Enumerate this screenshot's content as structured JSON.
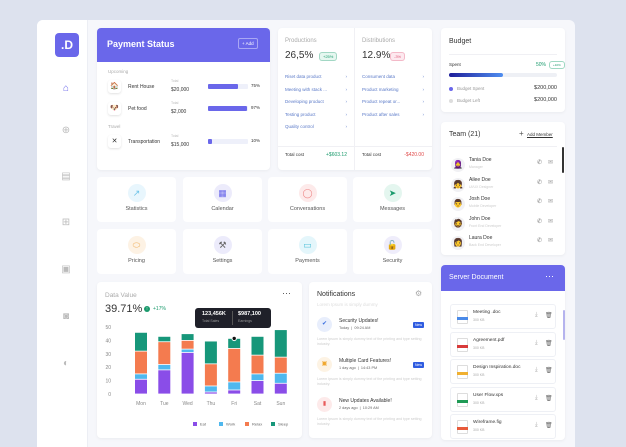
{
  "logo": ".D",
  "sidebar": {
    "icons": [
      "home-icon",
      "plus-circle-icon",
      "id-card-icon",
      "grid-icon",
      "inbox-icon",
      "user-icon",
      "half-moon-icon"
    ]
  },
  "payment": {
    "title": "Payment Status",
    "add_label": "+ Add",
    "groups": [
      {
        "label": "Upcoming",
        "items": [
          {
            "name": "Rent House",
            "icon": "house-icon",
            "total_label": "Total",
            "total": "$20,000",
            "percent": 75,
            "percent_label": "75%"
          },
          {
            "name": "Pet food",
            "icon": "dog-icon",
            "total_label": "Total",
            "total": "$2,000",
            "percent": 97,
            "percent_label": "97%"
          }
        ]
      },
      {
        "label": "Travel",
        "items": [
          {
            "name": "Transportation",
            "icon": "transport-icon",
            "total_label": "Total",
            "total": "$15,000",
            "percent": 10,
            "percent_label": "10%"
          }
        ]
      }
    ]
  },
  "productions": {
    "title": "Productions",
    "value": "26,5%",
    "badge": "+25%",
    "items": [
      "Riset data product",
      "Meeting with stack ...",
      "Developing product",
      "Testing product",
      "Quality control"
    ],
    "total_label": "Total cost",
    "total": "+$603.12"
  },
  "distributions": {
    "title": "Distributions",
    "value": "12.9%",
    "badge": "-3%",
    "items": [
      "Consument data",
      "Product marketing",
      "Product repeat or...",
      "Product after sales"
    ],
    "total_label": "Total cost",
    "total": "-$420.00"
  },
  "tiles": [
    {
      "label": "Statistics",
      "icon": "trend-icon",
      "bg": "#e8f6fd",
      "fg": "#6cc3e8"
    },
    {
      "label": "Calendar",
      "icon": "calendar-icon",
      "bg": "#ecebfb",
      "fg": "#6a67ea"
    },
    {
      "label": "Conversations",
      "icon": "chat-icon",
      "bg": "#fdeaea",
      "fg": "#e88"
    },
    {
      "label": "Messages",
      "icon": "send-icon",
      "bg": "#e4f6ef",
      "fg": "#1a9a6c"
    },
    {
      "label": "Pricing",
      "icon": "tag-icon",
      "bg": "#fdf2e4",
      "fg": "#f0b466"
    },
    {
      "label": "Settings",
      "icon": "hammer-icon",
      "bg": "#ecebfb",
      "fg": "#666"
    },
    {
      "label": "Payments",
      "icon": "money-icon",
      "bg": "#e4f6fb",
      "fg": "#4fc0d8"
    },
    {
      "label": "Security",
      "icon": "lock-icon",
      "bg": "#efedfb",
      "fg": "#8a86d8"
    }
  ],
  "data_value": {
    "title": "Data Value",
    "value": "39.71%",
    "change": "+17%",
    "tooltip": {
      "sales": "123,456K",
      "sales_label": "Total Sales",
      "earnings": "$987,100",
      "earnings_label": "Earnings"
    }
  },
  "chart_data": {
    "type": "bar",
    "stacked": true,
    "categories": [
      "Mon",
      "Tue",
      "Wed",
      "Thu",
      "Fri",
      "Sat",
      "Sun"
    ],
    "ylim": [
      0,
      50
    ],
    "yticks": [
      0,
      10,
      20,
      30,
      40,
      50
    ],
    "legend_position": "bottom-right",
    "series": [
      {
        "name": "Eat",
        "color": "#8a4de8",
        "values": [
          11,
          18,
          31,
          1.5,
          3,
          10,
          8
        ]
      },
      {
        "name": "Work",
        "color": "#4fb8ee",
        "values": [
          4,
          4,
          2.5,
          4.5,
          6,
          5,
          7.5
        ]
      },
      {
        "name": "Relax",
        "color": "#f47b4f",
        "values": [
          17,
          17,
          6.5,
          16.5,
          25,
          14,
          12
        ]
      },
      {
        "name": "Sleep",
        "color": "#17977a",
        "values": [
          14,
          4,
          5,
          17,
          7.5,
          14,
          20.5
        ]
      }
    ]
  },
  "notifications": {
    "title": "Notifications",
    "subtitle": "Lorem Ipsum is simply dummy",
    "items": [
      {
        "title": "Security Updates!",
        "time": "Today  |  09:24 AM",
        "badge": "New",
        "icon": "shield-check-icon",
        "bg": "#e8eefc",
        "fg": "#3b6fe0",
        "body": "Lorem Ipsum is simply dummy text of the printing and type setting industry."
      },
      {
        "title": "Multiple Card Features!",
        "time": "1 day ago  |  14:43 PM",
        "badge": "New",
        "icon": "card-icon",
        "bg": "#fdf3e4",
        "fg": "#f0a830",
        "body": "Lorem Ipsum is simply dummy text of the printing and type setting industry."
      },
      {
        "title": "New Updates Available!",
        "time": "2 days ago  |  10:29 AM",
        "badge": "",
        "icon": "update-icon",
        "bg": "#fdeaea",
        "fg": "#e85a5a",
        "body": "Lorem Ipsum is simply dummy text of the printing and type setting industry."
      }
    ]
  },
  "budget": {
    "title": "Budget",
    "spent_label": "Spent",
    "percent": 50,
    "percent_label": "50%",
    "badge": "+10%",
    "rows": [
      {
        "label": "Budget Spent",
        "value": "$200,000"
      },
      {
        "label": "Budget Left",
        "value": "$200,000"
      }
    ]
  },
  "team": {
    "title": "Team (21)",
    "add_label": "Add Member",
    "members": [
      {
        "name": "Tania Doe",
        "role": "Manager"
      },
      {
        "name": "Ailee Doe",
        "role": "UI/UX Designer"
      },
      {
        "name": "Josh Doe",
        "role": "Mobile Developer"
      },
      {
        "name": "John Doe",
        "role": "Front End Developer"
      },
      {
        "name": "Laura Doe",
        "role": "Back End Developer"
      }
    ]
  },
  "server": {
    "title": "Server Document",
    "files": [
      {
        "name": "Meeting .doc",
        "size": "300 KB",
        "color": "#4a8ae8"
      },
      {
        "name": "Agreement.pdf",
        "size": "300 KB",
        "color": "#d83a3a"
      },
      {
        "name": "Design Inspiration.doc",
        "size": "300 KB",
        "color": "#f0b030"
      },
      {
        "name": "User Flow.xps",
        "size": "300 KB",
        "color": "#1f9a55"
      },
      {
        "name": "Wireframe.fig",
        "size": "300 KB",
        "color": "#e85a3a"
      }
    ]
  }
}
